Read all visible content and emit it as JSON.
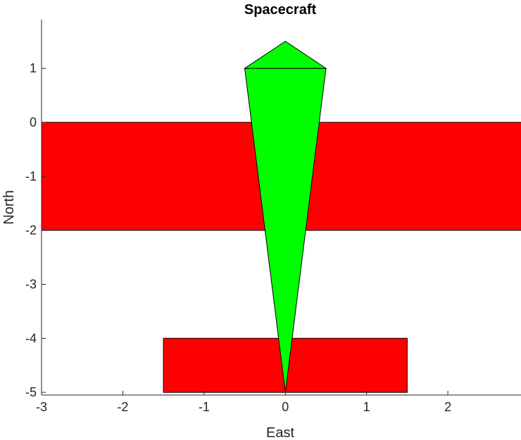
{
  "chart_data": {
    "type": "polygon",
    "title": "Spacecraft",
    "xlabel": "East",
    "ylabel": "North",
    "xlim": [
      -3,
      2.9
    ],
    "ylim": [
      -5.05,
      1.9
    ],
    "xticks": [
      -3,
      -2,
      -1,
      0,
      1,
      2
    ],
    "yticks": [
      -5,
      -4,
      -3,
      -2,
      -1,
      0,
      1
    ],
    "xtick_labels": [
      "-3",
      "-2",
      "-1",
      "0",
      "1",
      "2"
    ],
    "ytick_labels": [
      "-5",
      "-4",
      "-3",
      "-2",
      "-1",
      "0",
      "1"
    ],
    "grid": false,
    "box": false,
    "shapes": [
      {
        "name": "main-wing",
        "color": "#ff0000",
        "points": [
          [
            -3,
            0
          ],
          [
            3,
            0
          ],
          [
            3,
            -2
          ],
          [
            -3,
            -2
          ]
        ]
      },
      {
        "name": "tail-wing",
        "color": "#ff0000",
        "points": [
          [
            -1.5,
            -4
          ],
          [
            1.5,
            -4
          ],
          [
            1.5,
            -5
          ],
          [
            -1.5,
            -5
          ]
        ]
      },
      {
        "name": "fuselage",
        "color": "#00ff00",
        "points": [
          [
            -0.5,
            1
          ],
          [
            0.5,
            1
          ],
          [
            0,
            -5
          ]
        ]
      },
      {
        "name": "nose",
        "color": "#00ff00",
        "points": [
          [
            -0.5,
            1
          ],
          [
            0,
            1.5
          ],
          [
            0.5,
            1
          ]
        ]
      }
    ]
  }
}
